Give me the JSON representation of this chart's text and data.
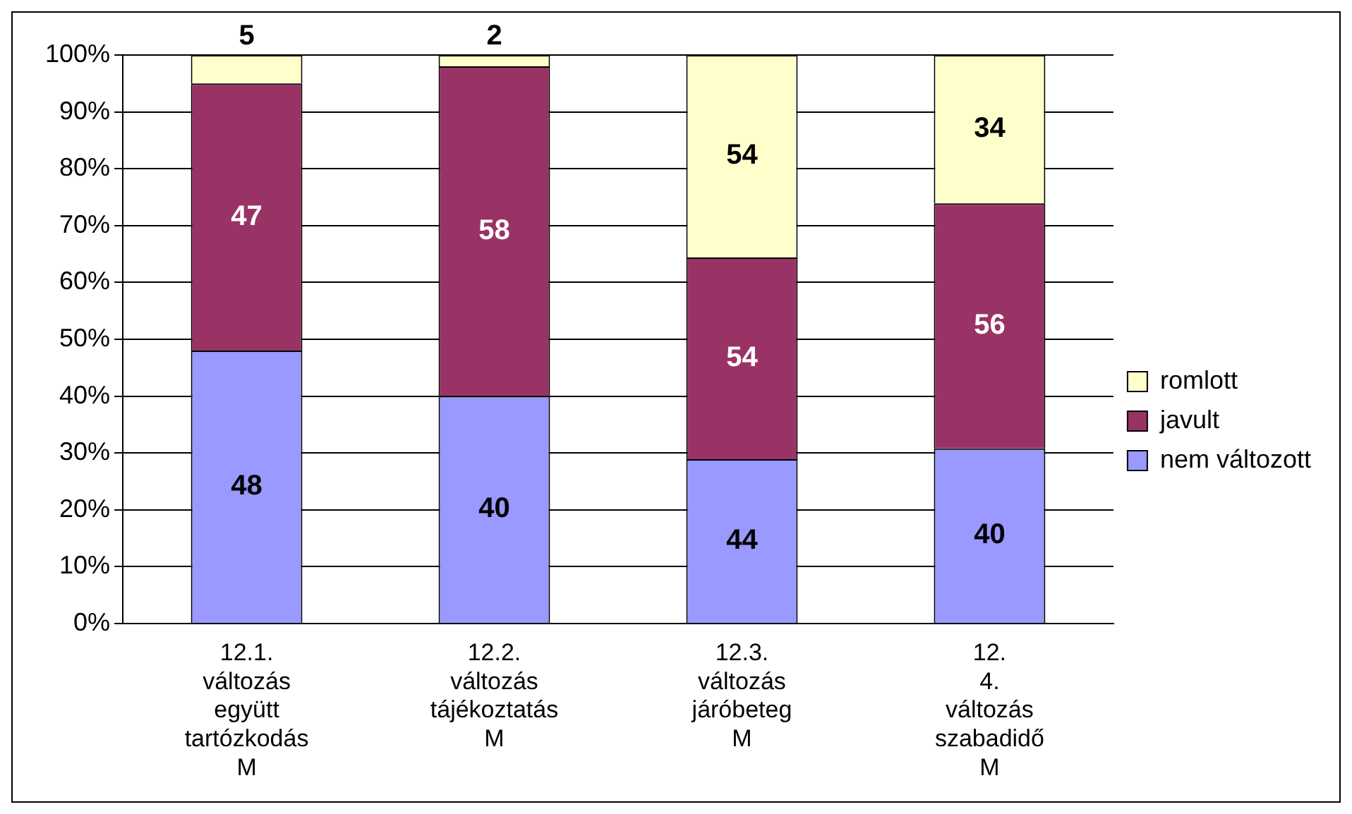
{
  "chart_data": {
    "type": "bar",
    "stacked": true,
    "categories": [
      "12.1. változás együtt tartózkodás M",
      "12.2. változás tájékoztatás M",
      "12.3. változás járóbeteg M",
      "12. 4. változás szabadidő M"
    ],
    "series": [
      {
        "name": "nem változott",
        "color": "#9999ff",
        "values": [
          48,
          40,
          28.9,
          30.8
        ]
      },
      {
        "name": "javult",
        "color": "#993366",
        "values": [
          47,
          58,
          35.5,
          43.1
        ]
      },
      {
        "name": "romlott",
        "color": "#ffffcc",
        "values": [
          5,
          2,
          35.6,
          26.1
        ]
      }
    ],
    "annotations": [
      "48",
      "47",
      "5",
      "40",
      "58",
      "2",
      "44",
      "54",
      "54",
      "40",
      "56",
      "34"
    ],
    "ylim": [
      0,
      100
    ],
    "yticks": [
      {
        "value": 0,
        "label": "0%"
      },
      {
        "value": 10,
        "label": "10%"
      },
      {
        "value": 20,
        "label": "20%"
      },
      {
        "value": 30,
        "label": "30%"
      },
      {
        "value": 40,
        "label": "40%"
      },
      {
        "value": 50,
        "label": "50%"
      },
      {
        "value": 60,
        "label": "60%"
      },
      {
        "value": 70,
        "label": "70%"
      },
      {
        "value": 80,
        "label": "80%"
      },
      {
        "value": 90,
        "label": "90%"
      },
      {
        "value": 100,
        "label": "100%"
      }
    ],
    "grid": "y",
    "legend": "right"
  }
}
